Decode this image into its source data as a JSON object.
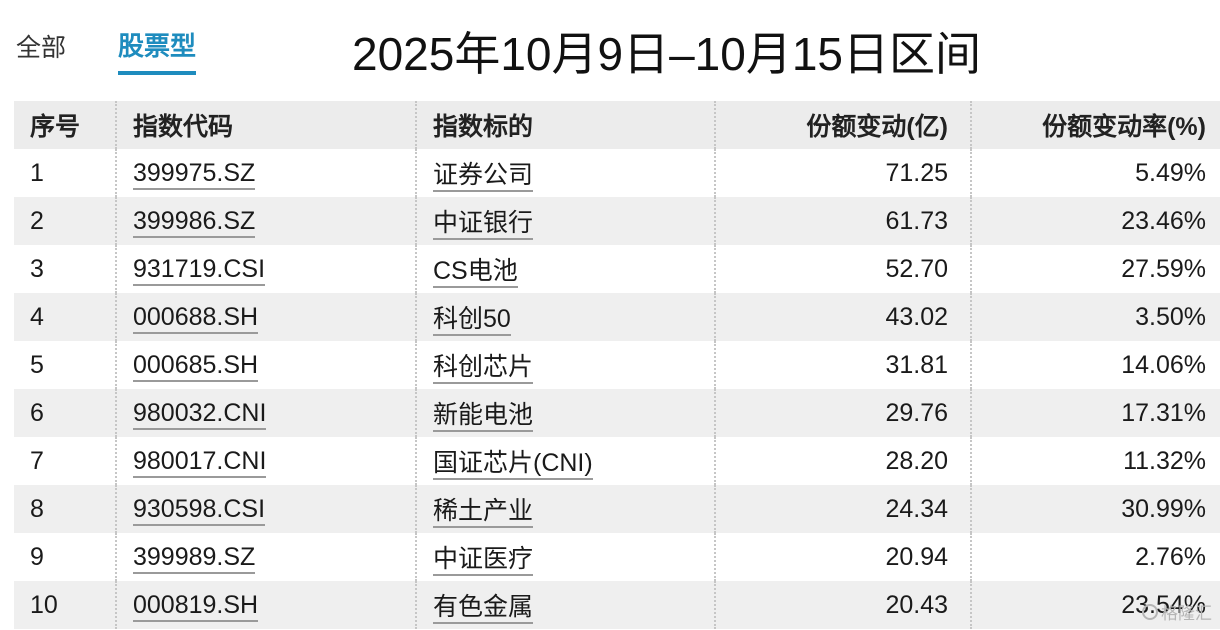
{
  "tabs": [
    {
      "label": "全部",
      "active": false
    },
    {
      "label": "股票型",
      "active": true
    }
  ],
  "title": "2025年10月9日–10月15日区间",
  "accent_color": "#1e8cbe",
  "table": {
    "columns": [
      "序号",
      "指数代码",
      "指数标的",
      "份额变动(亿)",
      "份额变动率(%)"
    ],
    "rows": [
      {
        "rank": "1",
        "code": "399975.SZ",
        "name": "证券公司",
        "change": "71.25",
        "rate": "5.49%"
      },
      {
        "rank": "2",
        "code": "399986.SZ",
        "name": "中证银行",
        "change": "61.73",
        "rate": "23.46%"
      },
      {
        "rank": "3",
        "code": "931719.CSI",
        "name": "CS电池",
        "change": "52.70",
        "rate": "27.59%"
      },
      {
        "rank": "4",
        "code": "000688.SH",
        "name": "科创50",
        "change": "43.02",
        "rate": "3.50%"
      },
      {
        "rank": "5",
        "code": "000685.SH",
        "name": "科创芯片",
        "change": "31.81",
        "rate": "14.06%"
      },
      {
        "rank": "6",
        "code": "980032.CNI",
        "name": "新能电池",
        "change": "29.76",
        "rate": "17.31%"
      },
      {
        "rank": "7",
        "code": "980017.CNI",
        "name": "国证芯片(CNI)",
        "change": "28.20",
        "rate": "11.32%"
      },
      {
        "rank": "8",
        "code": "930598.CSI",
        "name": "稀土产业",
        "change": "24.34",
        "rate": "30.99%"
      },
      {
        "rank": "9",
        "code": "399989.SZ",
        "name": "中证医疗",
        "change": "20.94",
        "rate": "2.76%"
      },
      {
        "rank": "10",
        "code": "000819.SH",
        "name": "有色金属",
        "change": "20.43",
        "rate": "23.54%"
      }
    ]
  },
  "watermark": "格隆汇"
}
